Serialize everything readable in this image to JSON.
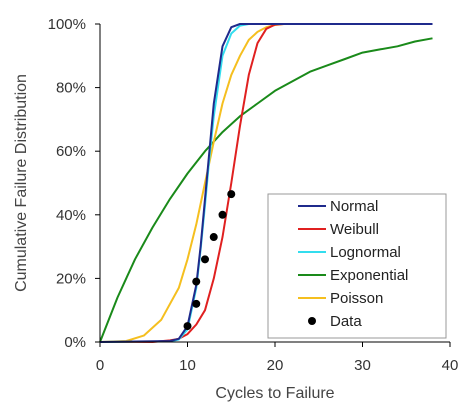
{
  "chart_data": {
    "type": "line",
    "xlabel": "Cycles to Failure",
    "ylabel": "Cumulative Failure Distribution",
    "xlim": [
      0,
      40
    ],
    "ylim": [
      0,
      1
    ],
    "x_ticks": [
      "0",
      "10",
      "20",
      "30",
      "40"
    ],
    "y_ticks": [
      "0%",
      "20%",
      "40%",
      "60%",
      "80%",
      "100%"
    ],
    "grid": false,
    "legend_position": "bottom-right",
    "series": [
      {
        "name": "Normal",
        "color": "#1f2a8c",
        "points": [
          [
            0,
            0
          ],
          [
            8,
            0.003
          ],
          [
            9,
            0.01
          ],
          [
            10,
            0.05
          ],
          [
            11,
            0.18
          ],
          [
            11.5,
            0.3
          ],
          [
            12,
            0.45
          ],
          [
            12.5,
            0.6
          ],
          [
            13,
            0.75
          ],
          [
            14,
            0.93
          ],
          [
            15,
            0.99
          ],
          [
            16,
            1
          ],
          [
            17,
            1
          ],
          [
            20,
            1
          ],
          [
            38,
            1
          ]
        ]
      },
      {
        "name": "Weibull",
        "color": "#e02020",
        "points": [
          [
            0,
            0
          ],
          [
            6,
            0
          ],
          [
            8,
            0.005
          ],
          [
            9,
            0.01
          ],
          [
            10,
            0.025
          ],
          [
            11,
            0.055
          ],
          [
            12,
            0.1
          ],
          [
            13,
            0.2
          ],
          [
            14,
            0.33
          ],
          [
            15,
            0.5
          ],
          [
            16,
            0.68
          ],
          [
            17,
            0.84
          ],
          [
            18,
            0.94
          ],
          [
            19,
            0.985
          ],
          [
            20,
            0.998
          ],
          [
            21,
            1
          ],
          [
            25,
            1
          ],
          [
            38,
            1
          ]
        ]
      },
      {
        "name": "Lognormal",
        "color": "#33ddee",
        "points": [
          [
            0,
            0
          ],
          [
            8,
            0.002
          ],
          [
            9,
            0.008
          ],
          [
            10,
            0.04
          ],
          [
            11,
            0.17
          ],
          [
            11.5,
            0.29
          ],
          [
            12,
            0.43
          ],
          [
            12.5,
            0.58
          ],
          [
            13,
            0.71
          ],
          [
            14,
            0.9
          ],
          [
            15,
            0.97
          ],
          [
            16,
            0.995
          ],
          [
            17,
            1
          ],
          [
            20,
            1
          ],
          [
            38,
            1
          ]
        ]
      },
      {
        "name": "Exponential",
        "color": "#1a8a1a",
        "points": [
          [
            0,
            0
          ],
          [
            2,
            0.14
          ],
          [
            4,
            0.26
          ],
          [
            6,
            0.36
          ],
          [
            8,
            0.45
          ],
          [
            10,
            0.53
          ],
          [
            12,
            0.6
          ],
          [
            14,
            0.66
          ],
          [
            16,
            0.71
          ],
          [
            18,
            0.75
          ],
          [
            20,
            0.79
          ],
          [
            22,
            0.82
          ],
          [
            24,
            0.85
          ],
          [
            26,
            0.87
          ],
          [
            28,
            0.89
          ],
          [
            30,
            0.91
          ],
          [
            32,
            0.92
          ],
          [
            34,
            0.93
          ],
          [
            36,
            0.945
          ],
          [
            38,
            0.955
          ]
        ]
      },
      {
        "name": "Poisson",
        "color": "#f5bf1f",
        "points": [
          [
            0,
            0
          ],
          [
            3,
            0.003
          ],
          [
            5,
            0.02
          ],
          [
            7,
            0.07
          ],
          [
            9,
            0.17
          ],
          [
            10,
            0.26
          ],
          [
            11,
            0.37
          ],
          [
            12,
            0.5
          ],
          [
            13,
            0.63
          ],
          [
            14,
            0.75
          ],
          [
            15,
            0.84
          ],
          [
            16,
            0.9
          ],
          [
            17,
            0.95
          ],
          [
            18,
            0.975
          ],
          [
            19,
            0.99
          ],
          [
            20,
            0.997
          ],
          [
            21,
            1
          ],
          [
            25,
            1
          ],
          [
            38,
            1
          ]
        ]
      },
      {
        "name": "Data",
        "color": "#000000",
        "marker": "circle",
        "points": [
          [
            10,
            0.05
          ],
          [
            11,
            0.12
          ],
          [
            11,
            0.19
          ],
          [
            12,
            0.26
          ],
          [
            13,
            0.33
          ],
          [
            14,
            0.4
          ],
          [
            15,
            0.465
          ]
        ]
      }
    ]
  }
}
